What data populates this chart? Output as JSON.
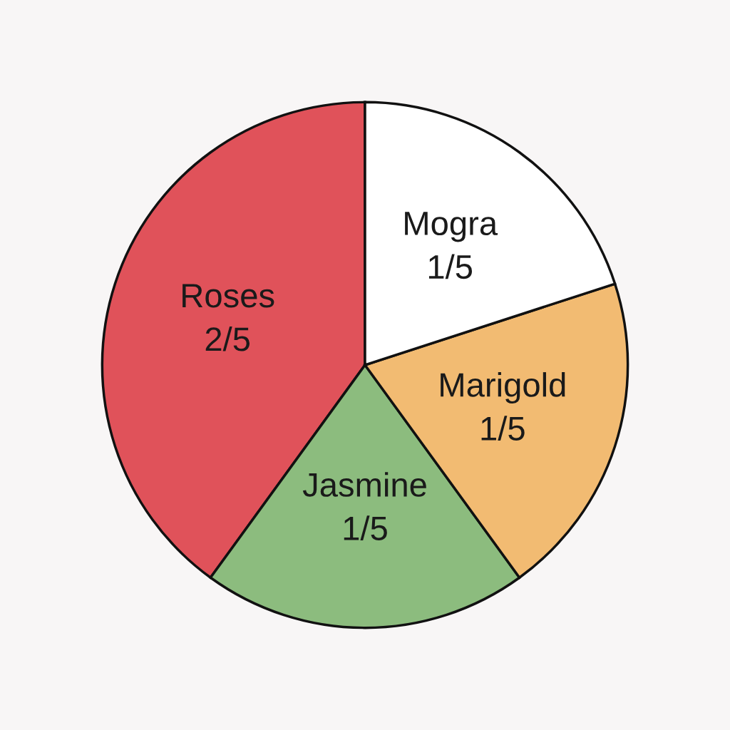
{
  "chart_data": {
    "type": "pie",
    "categories": [
      "Roses",
      "Jasmine",
      "Marigold",
      "Mogra"
    ],
    "values": [
      0.4,
      0.2,
      0.2,
      0.2
    ],
    "value_labels": [
      "2/5",
      "1/5",
      "1/5",
      "1/5"
    ],
    "colors": [
      "#e0525a",
      "#8cbc7e",
      "#f2bb72",
      "#ffffff"
    ],
    "legend": false
  }
}
